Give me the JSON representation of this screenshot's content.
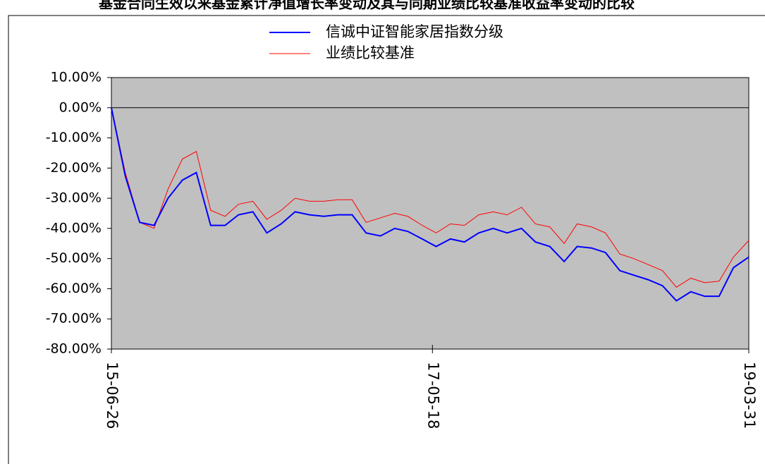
{
  "chart_data": {
    "type": "line",
    "title": "基金合同生效以来基金累计净值增长率变动及其与同期业绩比较基准收益率变动的比较",
    "x": [
      "15-06-26",
      "15-07-26",
      "15-08-26",
      "15-09-26",
      "15-10-26",
      "15-11-26",
      "15-12-26",
      "16-01-26",
      "16-02-26",
      "16-03-26",
      "16-04-26",
      "16-05-26",
      "16-06-26",
      "16-07-26",
      "16-08-26",
      "16-09-26",
      "16-10-26",
      "16-11-26",
      "16-12-26",
      "17-01-26",
      "17-02-26",
      "17-03-26",
      "17-04-26",
      "17-05-26",
      "17-06-26",
      "17-07-26",
      "17-08-26",
      "17-09-26",
      "17-10-26",
      "17-11-26",
      "17-12-26",
      "18-01-26",
      "18-02-26",
      "18-03-26",
      "18-04-26",
      "18-05-26",
      "18-06-26",
      "18-07-26",
      "18-08-26",
      "18-09-26",
      "18-10-26",
      "18-11-26",
      "18-12-26",
      "19-01-26",
      "19-02-26",
      "19-03-31"
    ],
    "series": [
      {
        "name": "信诚中证智能家居指数分级",
        "color": "#0000ff",
        "values": [
          0,
          -22.7,
          -38,
          -39,
          -30,
          -24,
          -21.5,
          -39,
          -39,
          -35.5,
          -34.5,
          -41.5,
          -38.5,
          -34.5,
          -35.5,
          -36,
          -35.5,
          -35.5,
          -41.5,
          -42.5,
          -40,
          -41,
          -43.5,
          -46,
          -43.5,
          -44.5,
          -41.5,
          -40,
          -41.5,
          -40,
          -44.5,
          -46,
          -51,
          -46,
          -46.5,
          -48,
          -54,
          -55.5,
          -57,
          -59,
          -64,
          -61,
          -62.5,
          -62.5,
          -53,
          -49.5
        ]
      },
      {
        "name": "业绩比较基准",
        "color": "#ff0000",
        "values": [
          0,
          -21.5,
          -38,
          -40,
          -27,
          -17,
          -14.5,
          -34,
          -36,
          -32,
          -31,
          -37,
          -34,
          -30,
          -31,
          -31,
          -30.5,
          -30.5,
          -38,
          -36.5,
          -35,
          -36,
          -39,
          -41.5,
          -38.5,
          -39,
          -35.5,
          -34.5,
          -35.5,
          -33,
          -38.5,
          -39.5,
          -45,
          -38.5,
          -39.5,
          -41.5,
          -48.5,
          -50,
          -52,
          -54,
          -59.5,
          -56.5,
          -58,
          -57.5,
          -49.5,
          -44
        ]
      }
    ],
    "ylim": [
      -80,
      10
    ],
    "yticks": [
      {
        "value": 10,
        "label": "10.00%"
      },
      {
        "value": 0,
        "label": "0.00%"
      },
      {
        "value": -10,
        "label": "-10.00%"
      },
      {
        "value": -20,
        "label": "-20.00%"
      },
      {
        "value": -30,
        "label": "-30.00%"
      },
      {
        "value": -40,
        "label": "-40.00%"
      },
      {
        "value": -50,
        "label": "-50.00%"
      },
      {
        "value": -60,
        "label": "-60.00%"
      },
      {
        "value": -70,
        "label": "-70.00%"
      },
      {
        "value": -80,
        "label": "-80.00%"
      }
    ],
    "xlim": [
      "15-06-26",
      "19-03-31"
    ],
    "xticks": [
      "15-06-26",
      "17-05-18",
      "19-03-31"
    ],
    "zero_line": true,
    "plot_background": "#c0c0c0"
  }
}
